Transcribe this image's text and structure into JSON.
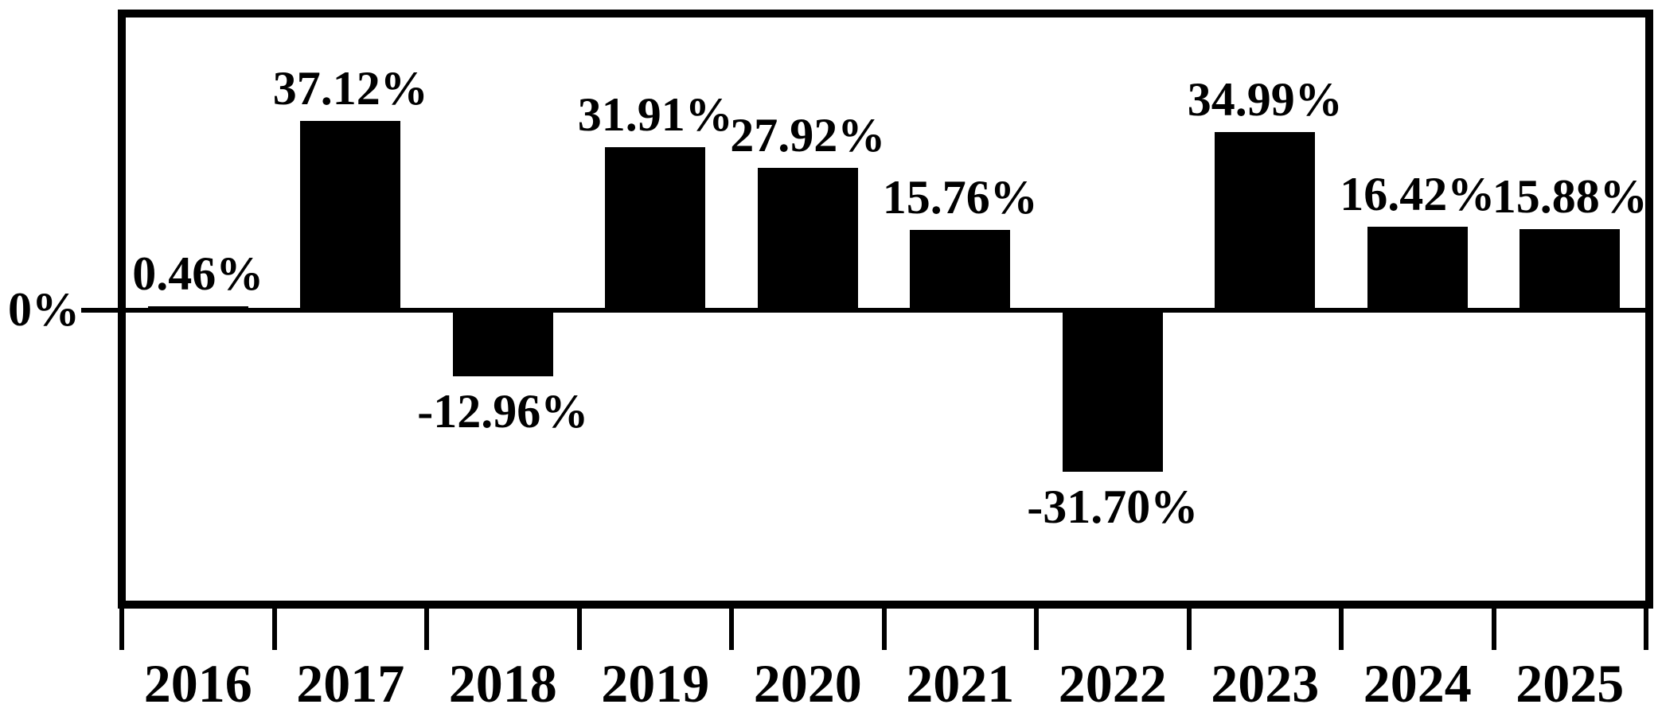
{
  "chart_data": {
    "type": "bar",
    "title": "",
    "xlabel": "",
    "ylabel": "",
    "categories": [
      "2016",
      "2017",
      "2018",
      "2019",
      "2020",
      "2021",
      "2022",
      "2023",
      "2024",
      "2025"
    ],
    "values": [
      0.46,
      37.12,
      -12.96,
      31.91,
      27.92,
      15.76,
      -31.7,
      34.99,
      16.42,
      15.88
    ],
    "data_labels": [
      "0.46%",
      "37.12%",
      "-12.96%",
      "31.91%",
      "27.92%",
      "15.76%",
      "-31.70%",
      "34.99%",
      "16.42%",
      "15.88%"
    ],
    "zero_label": "0%",
    "ylim": [
      -58,
      59
    ],
    "grid": false,
    "legend_position": "none",
    "bar_color": "#000000",
    "background_color": "#ffffff",
    "axis_color": "#000000"
  }
}
